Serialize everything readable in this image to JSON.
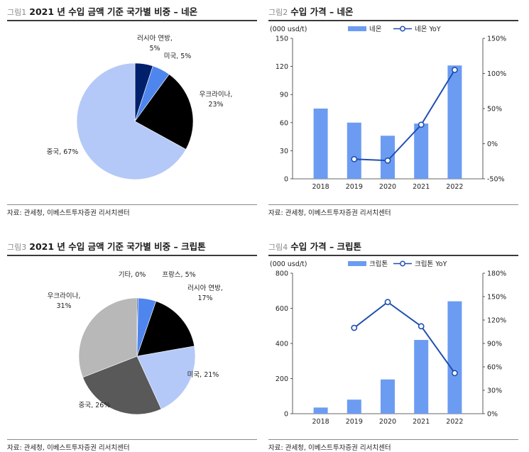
{
  "panels": [
    {
      "figure_label": "그림1",
      "title": "2021 년 수입 금액 기준 국가별 비중 – 네온",
      "source": "자료: 관세청, 이베스트투자증권 리서치센터"
    },
    {
      "figure_label": "그림2",
      "title": "수입 가격 – 네온",
      "source": "자료: 관세청, 이베스트투자증권 리서치센터"
    },
    {
      "figure_label": "그림3",
      "title": "2021 년 수입 금액 기준 국가별 비중 – 크립톤",
      "source": "자료: 관세청, 이베스트투자증권 리서치센터"
    },
    {
      "figure_label": "그림4",
      "title": "수입 가격 – 크립톤",
      "source": "자료: 관세청, 이베스트투자증권 리서치센터"
    }
  ],
  "colors": {
    "navy": "#00206b",
    "blue": "#4f86ee",
    "black": "#000000",
    "lightblue": "#b4c9f7",
    "bar": "#6c9cf2",
    "line": "#1f4fb0",
    "gray": "#b8b8b8",
    "darkgray": "#595959"
  },
  "chart_data": [
    {
      "type": "pie",
      "labels": [
        "러시아 연방",
        "미국",
        "우크라이나",
        "중국"
      ],
      "value_labels": [
        "5%",
        "5%",
        "23%",
        "67%"
      ],
      "values": [
        5,
        5,
        23,
        67
      ],
      "colors": [
        "#00206b",
        "#4f86ee",
        "#000000",
        "#b4c9f7"
      ]
    },
    {
      "type": "bar",
      "unit_label": "(000 usd/t)",
      "categories": [
        "2018",
        "2019",
        "2020",
        "2021",
        "2022"
      ],
      "series": [
        {
          "name": "네온",
          "type": "bar",
          "axis": "left",
          "values": [
            75,
            60,
            46,
            59,
            121
          ]
        },
        {
          "name": "네온 YoY",
          "type": "line",
          "axis": "right",
          "values": [
            null,
            -22,
            -24,
            27,
            105
          ]
        }
      ],
      "ylim": [
        0,
        150
      ],
      "yticks": [
        "0",
        "30",
        "60",
        "90",
        "120",
        "150"
      ],
      "y2lim": [
        -50,
        150
      ],
      "y2ticks": [
        "-50%",
        "0%",
        "50%",
        "100%",
        "150%"
      ]
    },
    {
      "type": "pie",
      "labels": [
        "기타",
        "프랑스",
        "러시아 연방",
        "미국",
        "중국",
        "우크라이나"
      ],
      "value_labels": [
        "0%",
        "5%",
        "17%",
        "21%",
        "26%",
        "31%"
      ],
      "values": [
        0.3,
        5,
        17,
        21,
        26,
        31
      ],
      "colors": [
        "#00206b",
        "#4f86ee",
        "#000000",
        "#b4c9f7",
        "#595959",
        "#b8b8b8"
      ]
    },
    {
      "type": "bar",
      "unit_label": "(000 usd/t)",
      "categories": [
        "2018",
        "2019",
        "2020",
        "2021",
        "2022"
      ],
      "series": [
        {
          "name": "크립톤",
          "type": "bar",
          "axis": "left",
          "values": [
            35,
            80,
            195,
            420,
            640
          ]
        },
        {
          "name": "크립톤 YoY",
          "type": "line",
          "axis": "right",
          "values": [
            null,
            110,
            143,
            112,
            52
          ]
        }
      ],
      "ylim": [
        0,
        800
      ],
      "yticks": [
        "0",
        "200",
        "400",
        "600",
        "800"
      ],
      "y2lim": [
        0,
        180
      ],
      "y2ticks": [
        "0%",
        "30%",
        "60%",
        "90%",
        "120%",
        "150%",
        "180%"
      ]
    }
  ]
}
